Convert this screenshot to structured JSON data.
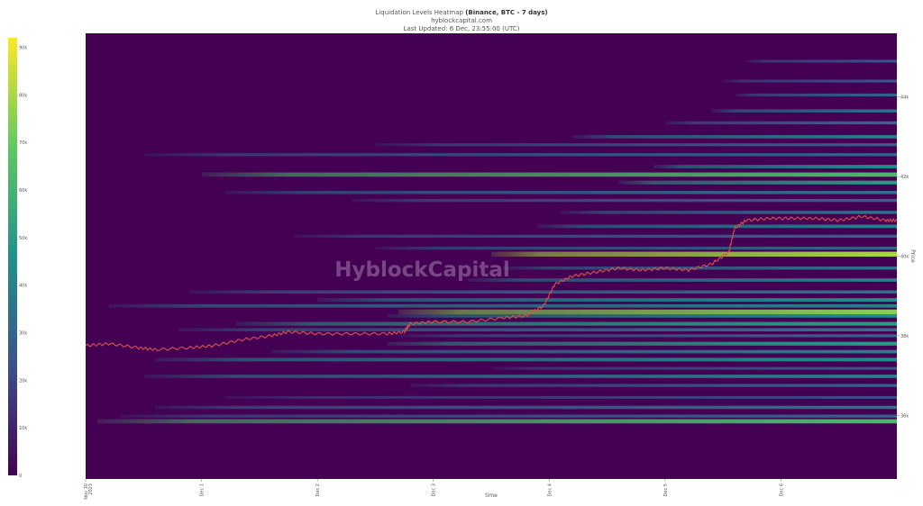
{
  "chart_data": {
    "type": "heatmap",
    "title": "Liquidation Levels Heatmap",
    "title_bold": "(Binance, BTC - 7 days)",
    "subtitle": "hyblockcapital.com",
    "updated": "Last Updated: 6 Dec, 23:55:00 (UTC)",
    "xlabel": "time",
    "ylabel": "Price",
    "watermark": "HyblockCapital",
    "colorscale": [
      "#440154",
      "#3b528b",
      "#21918c",
      "#5ec962",
      "#fde725"
    ],
    "colorbar": {
      "min": 0,
      "max": 92000,
      "ticks": [
        "0",
        "10k",
        "20k",
        "30k",
        "40k",
        "50k",
        "60k",
        "70k",
        "80k",
        "90k"
      ],
      "tick_values": [
        0,
        10000,
        20000,
        30000,
        40000,
        50000,
        60000,
        70000,
        80000,
        90000
      ]
    },
    "x_axis": {
      "range": [
        "2023-11-30 00:00",
        "2023-12-07 00:00"
      ],
      "ticks": [
        {
          "label": "Nov 30",
          "label2": "2023",
          "t": 0
        },
        {
          "label": "Dec 1",
          "t": 1
        },
        {
          "label": "Dec 2",
          "t": 2
        },
        {
          "label": "Dec 3",
          "t": 3
        },
        {
          "label": "Dec 4",
          "t": 4
        },
        {
          "label": "Dec 5",
          "t": 5
        },
        {
          "label": "Dec 6",
          "t": 6
        }
      ]
    },
    "y_axis": {
      "range": [
        34400,
        45600
      ],
      "ticks": [
        {
          "label": "36k",
          "v": 36000
        },
        {
          "label": "38k",
          "v": 38000
        },
        {
          "label": "40k",
          "v": 40000
        },
        {
          "label": "42k",
          "v": 42000
        },
        {
          "label": "44k",
          "v": 44000
        }
      ]
    },
    "price_series": {
      "color": "#d9534f",
      "t": [
        0,
        0.2,
        0.45,
        0.6,
        0.9,
        1.1,
        1.35,
        1.6,
        1.75,
        2.0,
        2.3,
        2.6,
        2.75,
        2.8,
        3.0,
        3.3,
        3.6,
        3.8,
        3.95,
        4.05,
        4.2,
        4.4,
        4.6,
        4.8,
        5.0,
        5.2,
        5.4,
        5.55,
        5.6,
        5.7,
        5.9,
        6.1,
        6.3,
        6.5,
        6.7,
        6.9,
        7.0
      ],
      "price": [
        37750,
        37800,
        37700,
        37650,
        37700,
        37750,
        37900,
        38000,
        38100,
        38050,
        38050,
        38050,
        38100,
        38300,
        38350,
        38350,
        38450,
        38500,
        38750,
        39300,
        39500,
        39600,
        39700,
        39650,
        39700,
        39650,
        39800,
        40100,
        40700,
        40900,
        40950,
        40950,
        40950,
        40900,
        41000,
        40900,
        40900
      ]
    },
    "liquidation_levels": [
      {
        "price": 35850,
        "start": 0.1,
        "value": 62000
      },
      {
        "price": 35980,
        "start": 0.3,
        "value": 30000
      },
      {
        "price": 36200,
        "start": 0.6,
        "value": 35000
      },
      {
        "price": 36450,
        "start": 1.2,
        "value": 22000
      },
      {
        "price": 36750,
        "start": 2.8,
        "value": 30000
      },
      {
        "price": 36980,
        "start": 0.5,
        "value": 40000
      },
      {
        "price": 37180,
        "start": 3.5,
        "value": 25000
      },
      {
        "price": 37400,
        "start": 0.6,
        "value": 45000
      },
      {
        "price": 37600,
        "start": 1.6,
        "value": 40000
      },
      {
        "price": 37800,
        "start": 2.6,
        "value": 50000
      },
      {
        "price": 38000,
        "start": 2.7,
        "value": 30000
      },
      {
        "price": 38150,
        "start": 0.8,
        "value": 35000
      },
      {
        "price": 38300,
        "start": 1.3,
        "value": 50000
      },
      {
        "price": 38500,
        "start": 2.6,
        "value": 45000
      },
      {
        "price": 38600,
        "start": 2.7,
        "value": 75000
      },
      {
        "price": 38750,
        "start": 0.2,
        "value": 40000
      },
      {
        "price": 38900,
        "start": 2.0,
        "value": 45000
      },
      {
        "price": 39100,
        "start": 0.9,
        "value": 35000
      },
      {
        "price": 39400,
        "start": 3.3,
        "value": 40000
      },
      {
        "price": 39700,
        "start": 3.6,
        "value": 35000
      },
      {
        "price": 40050,
        "start": 3.5,
        "value": 80000
      },
      {
        "price": 40200,
        "start": 2.5,
        "value": 30000
      },
      {
        "price": 40500,
        "start": 1.8,
        "value": 30000
      },
      {
        "price": 40750,
        "start": 3.9,
        "value": 40000
      },
      {
        "price": 41100,
        "start": 4.1,
        "value": 35000
      },
      {
        "price": 41400,
        "start": 2.3,
        "value": 30000
      },
      {
        "price": 41600,
        "start": 1.2,
        "value": 35000
      },
      {
        "price": 41850,
        "start": 4.6,
        "value": 50000
      },
      {
        "price": 42050,
        "start": 1.0,
        "value": 62000
      },
      {
        "price": 42250,
        "start": 4.9,
        "value": 45000
      },
      {
        "price": 42550,
        "start": 0.5,
        "value": 30000
      },
      {
        "price": 42800,
        "start": 2.5,
        "value": 28000
      },
      {
        "price": 43000,
        "start": 4.2,
        "value": 40000
      },
      {
        "price": 43350,
        "start": 5.0,
        "value": 32000
      },
      {
        "price": 43650,
        "start": 5.4,
        "value": 35000
      },
      {
        "price": 44050,
        "start": 5.6,
        "value": 30000
      },
      {
        "price": 44400,
        "start": 5.5,
        "value": 25000
      },
      {
        "price": 44900,
        "start": 5.7,
        "value": 25000
      }
    ]
  }
}
